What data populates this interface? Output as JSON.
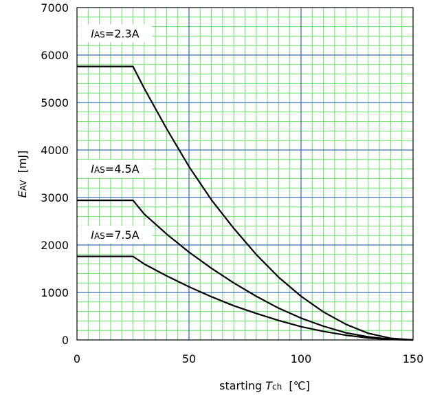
{
  "chart_data": {
    "type": "line",
    "title": "",
    "x_ticks": [
      "0",
      "50",
      "100",
      "150"
    ],
    "y_ticks": [
      "0",
      "1000",
      "2000",
      "3000",
      "4000",
      "5000",
      "6000",
      "7000"
    ],
    "xlim": [
      0,
      150
    ],
    "ylim": [
      0,
      7000
    ],
    "grid": true,
    "xlabel": {
      "prefix": "starting ",
      "var": "T",
      "sub": "ch",
      "unit": "  [℃]"
    },
    "ylabel": {
      "var": "E",
      "sub": "AV",
      "unit": "  [mJ]"
    },
    "series": [
      {
        "name": {
          "var": "I",
          "sub": "AS",
          "value": "=2.3A"
        },
        "x": [
          0,
          25,
          30,
          40,
          50,
          60,
          70,
          80,
          90,
          100,
          110,
          120,
          130,
          140,
          150
        ],
        "y": [
          5760,
          5760,
          5300,
          4450,
          3650,
          2950,
          2350,
          1800,
          1320,
          920,
          590,
          330,
          140,
          35,
          0
        ]
      },
      {
        "name": {
          "var": "I",
          "sub": "AS",
          "value": "=4.5A"
        },
        "x": [
          0,
          25,
          30,
          40,
          50,
          60,
          70,
          80,
          90,
          100,
          110,
          120,
          130,
          140,
          150
        ],
        "y": [
          2940,
          2940,
          2650,
          2230,
          1850,
          1510,
          1200,
          920,
          670,
          460,
          290,
          150,
          65,
          15,
          0
        ]
      },
      {
        "name": {
          "var": "I",
          "sub": "AS",
          "value": "=7.5A"
        },
        "x": [
          0,
          25,
          30,
          40,
          50,
          60,
          70,
          80,
          90,
          100,
          110,
          120,
          130,
          140,
          150
        ],
        "y": [
          1760,
          1760,
          1600,
          1350,
          1120,
          910,
          720,
          560,
          410,
          280,
          180,
          100,
          40,
          10,
          0
        ]
      }
    ]
  }
}
